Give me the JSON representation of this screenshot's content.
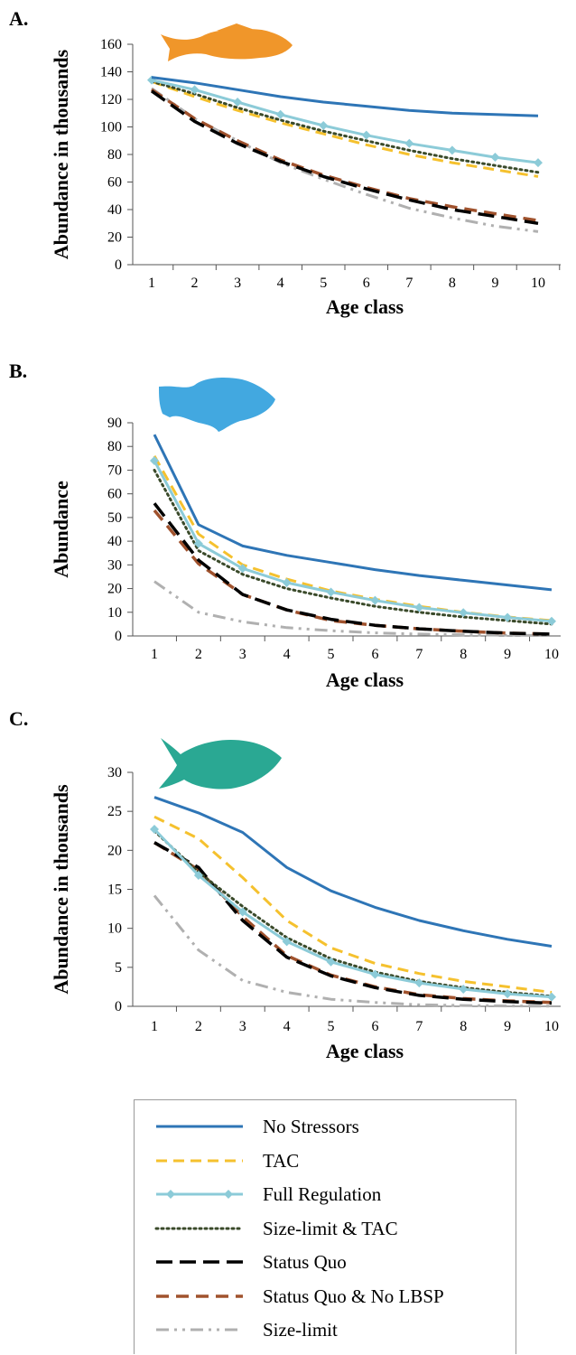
{
  "panels": [
    {
      "letter": "A.",
      "fish_color": "#f0962a"
    },
    {
      "letter": "B.",
      "fish_color": "#42a8e0"
    },
    {
      "letter": "C.",
      "fish_color": "#2aa893"
    }
  ],
  "styles": {
    "No Stressors": {
      "color": "#2e75b6",
      "dash": "",
      "width": 3,
      "marker": false
    },
    "TAC": {
      "color": "#f5c12e",
      "dash": "12,7",
      "width": 3,
      "marker": false
    },
    "Full Regulation": {
      "color": "#8ccbd8",
      "dash": "",
      "width": 3,
      "marker": true
    },
    "Size-limit & TAC": {
      "color": "#3a4a2a",
      "dash": "2,4",
      "width": 3,
      "marker": false
    },
    "Status Quo": {
      "color": "#000000",
      "dash": "18,8",
      "width": 3.5,
      "marker": false
    },
    "Status Quo & No LBSP": {
      "color": "#a0522d",
      "dash": "14,8",
      "width": 3.5,
      "marker": false
    },
    "Size-limit": {
      "color": "#b0b0b0",
      "dash": "14,6,3,6,3,6",
      "width": 3,
      "marker": false
    }
  },
  "legend": {
    "entries": [
      "No Stressors",
      "TAC",
      "Full Regulation",
      "Size-limit & TAC",
      "Status Quo",
      "Status Quo & No LBSP",
      "Size-limit"
    ]
  },
  "chart_data": [
    {
      "type": "line",
      "xlabel": "Age class",
      "ylabel": "Abundance in thousands",
      "ylim": [
        0,
        160
      ],
      "yticks": [
        0,
        20,
        40,
        60,
        80,
        100,
        120,
        140,
        160
      ],
      "x": [
        1,
        2,
        3,
        4,
        5,
        6,
        7,
        8,
        9,
        10
      ],
      "series": [
        {
          "name": "No Stressors",
          "values": [
            136,
            132,
            127,
            122,
            118,
            115,
            112,
            110,
            109,
            108
          ]
        },
        {
          "name": "TAC",
          "values": [
            133,
            122,
            112,
            103,
            95,
            87,
            80,
            74,
            69,
            64
          ]
        },
        {
          "name": "Full Regulation",
          "values": [
            134,
            127,
            118,
            109,
            101,
            94,
            88,
            83,
            78,
            74
          ]
        },
        {
          "name": "Size-limit & TAC",
          "values": [
            133,
            124,
            114,
            105,
            97,
            90,
            83,
            77,
            72,
            67
          ]
        },
        {
          "name": "Status Quo",
          "values": [
            126,
            104,
            88,
            75,
            64,
            55,
            47,
            40,
            35,
            30
          ]
        },
        {
          "name": "Status Quo & No LBSP",
          "values": [
            127,
            106,
            90,
            76,
            65,
            56,
            48,
            42,
            37,
            32
          ]
        },
        {
          "name": "Size-limit",
          "values": [
            128,
            106,
            90,
            74,
            62,
            51,
            41,
            34,
            28,
            24
          ]
        }
      ]
    },
    {
      "type": "line",
      "xlabel": "Age class",
      "ylabel": "Abundance",
      "ylim": [
        0,
        90
      ],
      "yticks": [
        0,
        10,
        20,
        30,
        40,
        50,
        60,
        70,
        80,
        90
      ],
      "x": [
        1,
        2,
        3,
        4,
        5,
        6,
        7,
        8,
        9,
        10
      ],
      "series": [
        {
          "name": "No Stressors",
          "values": [
            85,
            47,
            38,
            34,
            31,
            28,
            25.5,
            23.5,
            21.5,
            19.5
          ]
        },
        {
          "name": "TAC",
          "values": [
            76,
            43,
            30,
            24,
            19,
            15.5,
            12.5,
            10,
            8,
            6.5
          ]
        },
        {
          "name": "Full Regulation",
          "values": [
            74,
            39,
            28.5,
            22.5,
            18.5,
            15,
            12,
            9.8,
            7.8,
            6.2
          ]
        },
        {
          "name": "Size-limit & TAC",
          "values": [
            70,
            36,
            26,
            20,
            16,
            12.5,
            10,
            8,
            6.5,
            5
          ]
        },
        {
          "name": "Status Quo",
          "values": [
            56,
            32,
            17.5,
            11,
            7,
            4.5,
            3,
            2,
            1.2,
            0.8
          ]
        },
        {
          "name": "Status Quo & No LBSP",
          "values": [
            53,
            30.5,
            17.5,
            11,
            6.5,
            4.5,
            3,
            2,
            1.2,
            0.8
          ]
        },
        {
          "name": "Size-limit",
          "values": [
            23,
            10,
            6,
            3.5,
            2.2,
            1.3,
            0.8,
            0.5,
            0.3,
            0.2
          ]
        }
      ]
    },
    {
      "type": "line",
      "xlabel": "Age class",
      "ylabel": "Abundance in thousands",
      "ylim": [
        0,
        30
      ],
      "yticks": [
        0,
        5,
        10,
        15,
        20,
        25,
        30
      ],
      "x": [
        1,
        2,
        3,
        4,
        5,
        6,
        7,
        8,
        9,
        10
      ],
      "series": [
        {
          "name": "No Stressors",
          "values": [
            26.8,
            24.8,
            22.3,
            17.8,
            14.8,
            12.7,
            11,
            9.7,
            8.6,
            7.7
          ]
        },
        {
          "name": "TAC",
          "values": [
            24.3,
            21.5,
            16.5,
            11,
            7.5,
            5.5,
            4.2,
            3.2,
            2.5,
            1.8
          ]
        },
        {
          "name": "Full Regulation",
          "values": [
            22.7,
            16.8,
            12.1,
            8.3,
            5.7,
            4.1,
            3,
            2.2,
            1.6,
            1.2
          ]
        },
        {
          "name": "Size-limit & TAC",
          "values": [
            22.5,
            17.2,
            12.8,
            8.8,
            6.1,
            4.4,
            3.2,
            2.4,
            1.8,
            1.3
          ]
        },
        {
          "name": "Status Quo",
          "values": [
            21,
            17.8,
            11,
            6.3,
            3.9,
            2.4,
            1.4,
            0.9,
            0.6,
            0.4
          ]
        },
        {
          "name": "Status Quo & No LBSP",
          "values": [
            21,
            17.5,
            11.5,
            6.5,
            4,
            2.5,
            1.5,
            1,
            0.7,
            0.5
          ]
        },
        {
          "name": "Size-limit",
          "values": [
            14.2,
            7.2,
            3.3,
            1.8,
            0.9,
            0.5,
            0.2,
            0.1,
            0.05,
            0.02
          ]
        }
      ]
    }
  ]
}
